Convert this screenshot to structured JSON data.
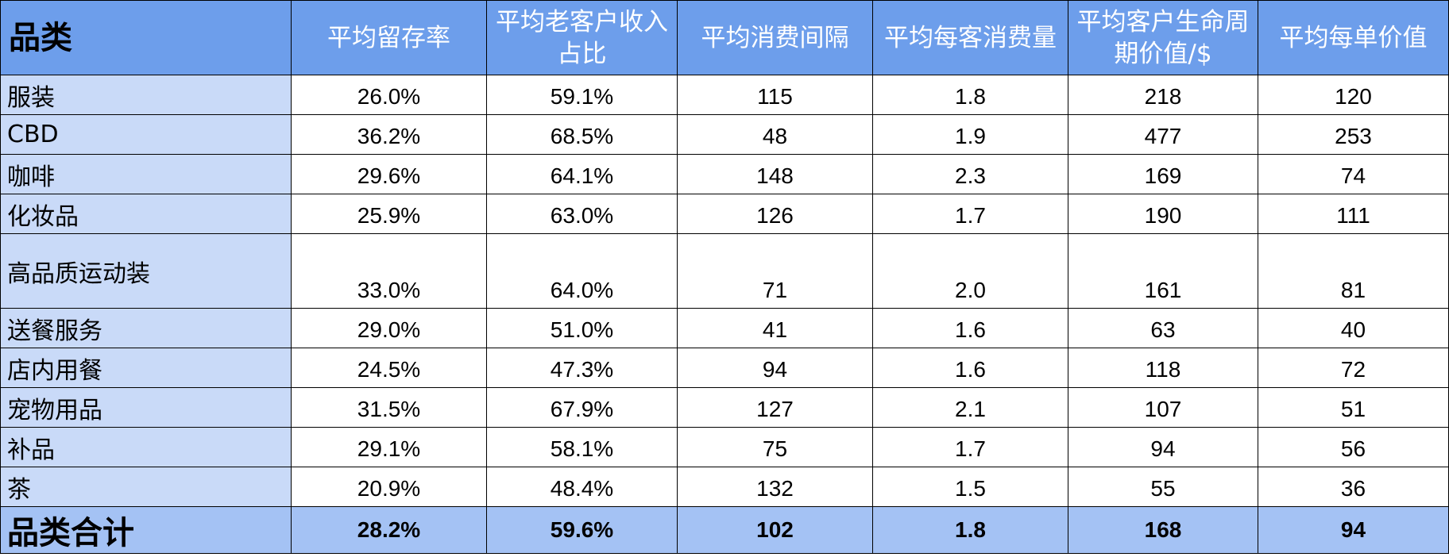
{
  "table": {
    "headers": [
      "品类",
      "平均留存率",
      "平均老客户收入占比",
      "平均消费间隔",
      "平均每客消费量",
      "平均客户生命周期价值/$",
      "平均每单价值"
    ],
    "rows": [
      {
        "category": "服装",
        "values": [
          "26.0%",
          "59.1%",
          "115",
          "1.8",
          "218",
          "120"
        ]
      },
      {
        "category": "CBD",
        "values": [
          "36.2%",
          "68.5%",
          "48",
          "1.9",
          "477",
          "253"
        ]
      },
      {
        "category": "咖啡",
        "values": [
          "29.6%",
          "64.1%",
          "148",
          "2.3",
          "169",
          "74"
        ]
      },
      {
        "category": "化妆品",
        "values": [
          "25.9%",
          "63.0%",
          "126",
          "1.7",
          "190",
          "111"
        ]
      },
      {
        "category": "高品质运动装",
        "values": [
          "33.0%",
          "64.0%",
          "71",
          "2.0",
          "161",
          "81"
        ]
      },
      {
        "category": "送餐服务",
        "values": [
          "29.0%",
          "51.0%",
          "41",
          "1.6",
          "63",
          "40"
        ]
      },
      {
        "category": "店内用餐",
        "values": [
          "24.5%",
          "47.3%",
          "94",
          "1.6",
          "118",
          "72"
        ]
      },
      {
        "category": "宠物用品",
        "values": [
          "31.5%",
          "67.9%",
          "127",
          "2.1",
          "107",
          "51"
        ]
      },
      {
        "category": "补品",
        "values": [
          "29.1%",
          "58.1%",
          "75",
          "1.7",
          "94",
          "56"
        ]
      },
      {
        "category": "茶",
        "values": [
          "20.9%",
          "48.4%",
          "132",
          "1.5",
          "55",
          "36"
        ]
      }
    ],
    "total": {
      "category": "品类合计",
      "values": [
        "28.2%",
        "59.6%",
        "102",
        "1.8",
        "168",
        "94"
      ]
    }
  },
  "colors": {
    "header_bg": "#6d9eeb",
    "category_bg": "#c9daf8",
    "total_bg": "#a4c2f4",
    "header_text": "#ffffff",
    "border": "#000000"
  }
}
